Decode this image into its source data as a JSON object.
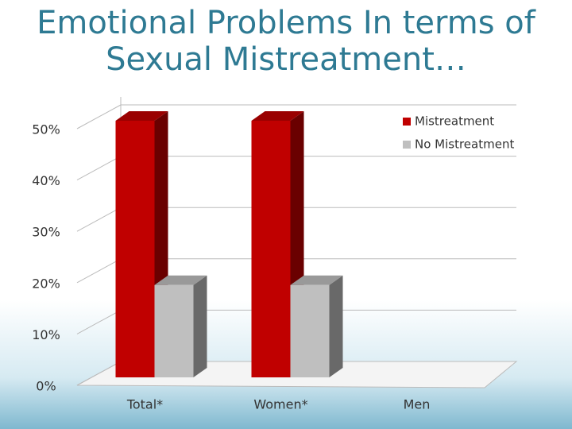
{
  "chart_data": {
    "type": "bar3d",
    "title": "Emotional Problems In terms of Sexual Mistreatment…",
    "categories": [
      "Total*",
      "Women*",
      "Men"
    ],
    "series": [
      {
        "name": "Mistreatment",
        "color": "#c00000",
        "values": [
          50,
          50,
          null
        ]
      },
      {
        "name": "No Mistreatment",
        "color": "#bfbfbf",
        "values": [
          18,
          18,
          null
        ]
      }
    ],
    "ylim": [
      0,
      50
    ],
    "yticks": [
      {
        "value": 0,
        "label": "0%"
      },
      {
        "value": 10,
        "label": "10%"
      },
      {
        "value": 20,
        "label": "20%"
      },
      {
        "value": 30,
        "label": "30%"
      },
      {
        "value": 40,
        "label": "40%"
      },
      {
        "value": 50,
        "label": "50%"
      }
    ],
    "grid": true,
    "legend": "top-right"
  }
}
